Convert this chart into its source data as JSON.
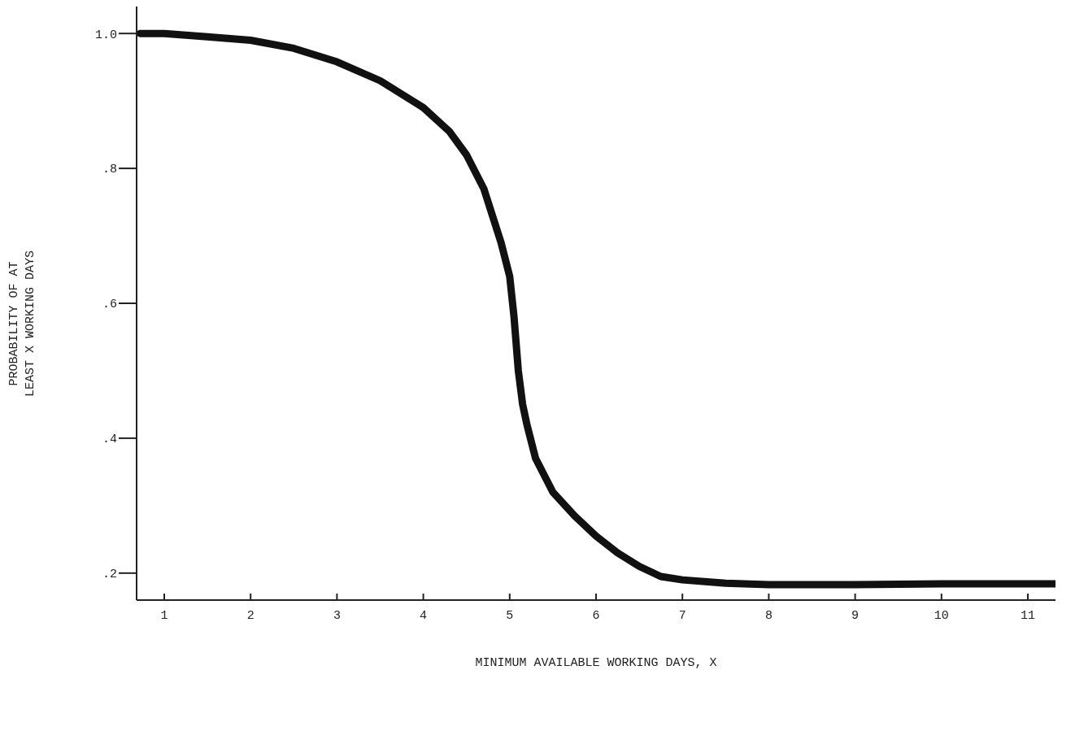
{
  "chart_data": {
    "type": "line",
    "xlabel": "MINIMUM AVAILABLE WORKING DAYS, X",
    "ylabel": "PROBABILITY OF AT\nLEAST X WORKING DAYS",
    "x": [
      0.72,
      1,
      1.5,
      2,
      2.5,
      3,
      3.5,
      4,
      4.3,
      4.5,
      4.7,
      4.8,
      4.9,
      5,
      5.05,
      5.1,
      5.15,
      5.2,
      5.3,
      5.5,
      5.75,
      6,
      6.25,
      6.5,
      6.75,
      7,
      7.5,
      8,
      9,
      10,
      11,
      11.32
    ],
    "series": [
      {
        "color": "#111111",
        "values": [
          1.0,
          1.0,
          0.995,
          0.99,
          0.978,
          0.958,
          0.93,
          0.89,
          0.855,
          0.82,
          0.77,
          0.73,
          0.69,
          0.64,
          0.58,
          0.5,
          0.45,
          0.42,
          0.37,
          0.32,
          0.285,
          0.255,
          0.23,
          0.21,
          0.195,
          0.19,
          0.185,
          0.183,
          0.183,
          0.184,
          0.184,
          0.184
        ]
      }
    ],
    "xlim": [
      0.68,
      11.32
    ],
    "ylim": [
      0.16,
      1.04
    ],
    "xticks": [
      1,
      2,
      3,
      4,
      5,
      6,
      7,
      8,
      9,
      10,
      11
    ],
    "yticks": [
      {
        "value": 0.2,
        "label": ".2"
      },
      {
        "value": 0.4,
        "label": ".4"
      },
      {
        "value": 0.6,
        "label": ".6"
      },
      {
        "value": 0.8,
        "label": ".8"
      },
      {
        "value": 1.0,
        "label": "1.0"
      }
    ],
    "grid": false,
    "legend": false,
    "marker": "none",
    "line_style": "solid"
  }
}
